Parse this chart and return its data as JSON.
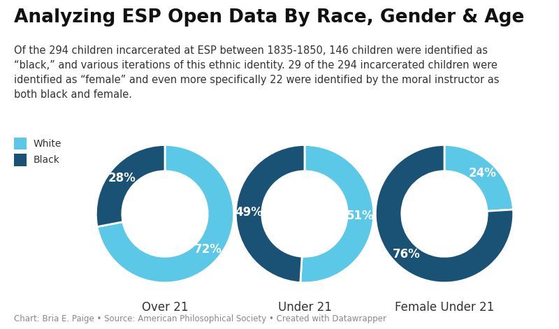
{
  "title": "Analyzing ESP Open Data By Race, Gender & Age",
  "subtitle": "Of the 294 children incarcerated at ESP between 1835-1850, 146 children were identified as\n“black,” and various iterations of this ethnic identity. 29 of the 294 incarcerated children were\nidentified as “female” and even more specifically 22 were identified by the moral instructor as\nboth black and female.",
  "footer": "Chart: Bria E. Paige • Source: American Philosophical Society • Created with Datawrapper",
  "charts": [
    {
      "label": "Over 21",
      "white_pct": 72,
      "black_pct": 28
    },
    {
      "label": "Under 21",
      "white_pct": 51,
      "black_pct": 49
    },
    {
      "label": "Female Under 21",
      "white_pct": 24,
      "black_pct": 76
    }
  ],
  "color_white": "#5bc8e8",
  "color_black": "#1a5276",
  "background_color": "#ffffff",
  "legend_labels": [
    "White",
    "Black"
  ],
  "donut_width": 0.38,
  "title_fontsize": 19,
  "subtitle_fontsize": 10.5,
  "footer_fontsize": 8.5,
  "chart_label_fontsize": 12,
  "pct_fontsize": 12,
  "legend_fontsize": 10
}
